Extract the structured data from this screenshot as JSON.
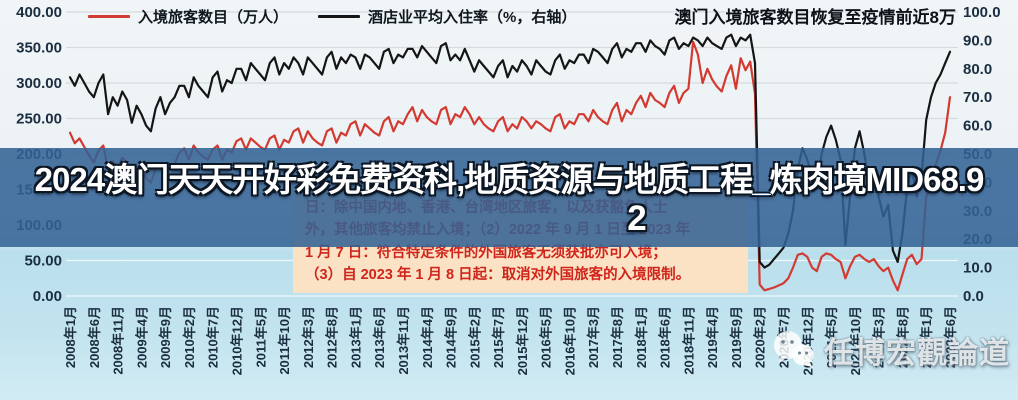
{
  "legend": {
    "series1_label": "入境旅客数目（万人）",
    "series2_label": "酒店业平均入住率（%，右轴）"
  },
  "title": "澳门入境旅客数目恢复至疫情前近8万",
  "overlay": {
    "line1": "2024澳门天天开好彩免费资科,地质资源与地质工程_炼肉境MID68.9",
    "line2": "2"
  },
  "annotation": {
    "lines": [
      "日：除中国内地、香港、台湾地区旅客，以及获豁免人士",
      "外，其他旅客均禁止入境；（2）2022 年 9 月 1 日至 2023 年",
      "1 月 7 日：符合特定条件的外国旅客无须获批亦可入境；",
      "（3）自 2023 年 1 月 8 日起：取消对外国旅客的入境限制。"
    ]
  },
  "watermark": {
    "icon": "wechat-icon",
    "text": "任博宏觀論道"
  },
  "colors": {
    "series1": "#d23a32",
    "series2": "#151515",
    "band": "rgba(50,98,148,0.87)",
    "note_bg": "#fbe2c4",
    "note_text": "#d0251b",
    "axis_text": "#1b2d40",
    "grid_upper": "#d6dbde",
    "grid_lower": "rgba(255,255,255,0.75)"
  },
  "chart_data": {
    "type": "line",
    "title": "澳门入境旅客数目恢复至疫情前近8万",
    "frequency": "monthly",
    "x_start": "2008年1月",
    "x_end": "2023年6月",
    "x_tick_labels": [
      "2008年1月",
      "2008年6月",
      "2008年11月",
      "2009年4月",
      "2009年9月",
      "2010年2月",
      "2010年7月",
      "2010年12月",
      "2011年5月",
      "2011年10月",
      "2012年3月",
      "2012年8月",
      "2013年1月",
      "2013年6月",
      "2013年11月",
      "2014年4月",
      "2014年9月",
      "2015年2月",
      "2015年7月",
      "2015年12月",
      "2016年5月",
      "2016年10月",
      "2017年3月",
      "2017年8月",
      "2018年1月",
      "2018年6月",
      "2018年11月",
      "2019年4月",
      "2019年9月",
      "2020年2月",
      "2020年7月",
      "2020年12月",
      "2021年5月",
      "2021年10月",
      "2022年3月",
      "2022年8月",
      "2023年1月",
      "2023年6月"
    ],
    "x_tick_step_months": 5,
    "left_axis": {
      "range": [
        0,
        400
      ],
      "ticks": [
        "400.00",
        "350.00",
        "300.00",
        "250.00",
        "200.00",
        "150.00",
        "100.00",
        "50.00",
        "0.00"
      ]
    },
    "right_axis": {
      "range": [
        0,
        100
      ],
      "ticks": [
        "100.0",
        "90.0",
        "80.0",
        "70.0",
        "60.0",
        "50.0",
        "40.0",
        "30.0",
        "20.0",
        "10.0",
        "0.0"
      ]
    },
    "grid": true,
    "legend_position": "top",
    "series": [
      {
        "name": "入境旅客数目（万人）",
        "axis": "left",
        "color": "#d23a32",
        "values": [
          230,
          215,
          222,
          210,
          198,
          188,
          205,
          212,
          178,
          190,
          182,
          195,
          188,
          172,
          182,
          176,
          166,
          160,
          178,
          186,
          168,
          182,
          186,
          202,
          208,
          192,
          212,
          202,
          196,
          192,
          206,
          212,
          192,
          206,
          202,
          218,
          222,
          206,
          222,
          216,
          210,
          206,
          222,
          226,
          206,
          220,
          216,
          232,
          236,
          216,
          232,
          222,
          216,
          212,
          232,
          236,
          216,
          230,
          226,
          242,
          246,
          226,
          242,
          236,
          230,
          226,
          246,
          252,
          232,
          246,
          242,
          256,
          266,
          246,
          262,
          252,
          246,
          242,
          262,
          266,
          242,
          256,
          252,
          266,
          256,
          242,
          252,
          242,
          236,
          232,
          246,
          252,
          232,
          242,
          236,
          252,
          246,
          236,
          246,
          242,
          236,
          232,
          252,
          256,
          236,
          246,
          242,
          256,
          256,
          246,
          262,
          252,
          246,
          242,
          262,
          272,
          246,
          262,
          256,
          272,
          282,
          266,
          286,
          276,
          272,
          266,
          286,
          296,
          272,
          286,
          292,
          358,
          340,
          300,
          320,
          305,
          295,
          288,
          310,
          325,
          292,
          335,
          318,
          330,
          285,
          16,
          8,
          10,
          12,
          15,
          18,
          25,
          40,
          58,
          60,
          55,
          40,
          35,
          55,
          60,
          58,
          52,
          48,
          25,
          42,
          55,
          58,
          52,
          48,
          52,
          42,
          35,
          40,
          22,
          8,
          30,
          52,
          58,
          45,
          52,
          140,
          160,
          185,
          205,
          230,
          280
        ]
      },
      {
        "name": "酒店业平均入住率（%，右轴）",
        "axis": "right",
        "color": "#151515",
        "values": [
          77,
          74,
          78,
          75,
          72,
          70,
          75,
          78,
          64,
          70,
          67,
          72,
          69,
          61,
          67,
          64,
          60,
          58,
          66,
          70,
          64,
          68,
          70,
          74,
          74,
          70,
          77,
          74,
          72,
          70,
          77,
          79,
          72,
          76,
          75,
          80,
          80,
          76,
          82,
          80,
          78,
          76,
          82,
          84,
          78,
          82,
          80,
          84,
          82,
          78,
          84,
          82,
          80,
          78,
          84,
          86,
          80,
          84,
          82,
          85,
          84,
          80,
          85,
          84,
          82,
          80,
          86,
          87,
          82,
          85,
          84,
          87,
          87,
          84,
          88,
          86,
          84,
          82,
          88,
          89,
          83,
          85,
          83,
          87,
          83,
          79,
          83,
          81,
          79,
          77,
          81,
          83,
          77,
          81,
          79,
          83,
          81,
          78,
          83,
          81,
          79,
          78,
          83,
          85,
          80,
          83,
          82,
          85,
          85,
          82,
          87,
          86,
          84,
          82,
          87,
          89,
          84,
          87,
          86,
          89,
          89,
          86,
          90,
          88,
          87,
          85,
          90,
          91,
          87,
          89,
          88,
          91,
          90,
          88,
          91,
          89,
          88,
          87,
          91,
          92,
          88,
          91,
          90,
          92,
          82,
          12,
          10,
          11,
          13,
          15,
          17,
          22,
          30,
          45,
          52,
          48,
          42,
          38,
          50,
          56,
          60,
          55,
          48,
          18,
          35,
          52,
          58,
          50,
          40,
          45,
          35,
          28,
          32,
          16,
          12,
          22,
          38,
          45,
          35,
          42,
          62,
          70,
          75,
          78,
          82,
          86
        ]
      }
    ]
  }
}
